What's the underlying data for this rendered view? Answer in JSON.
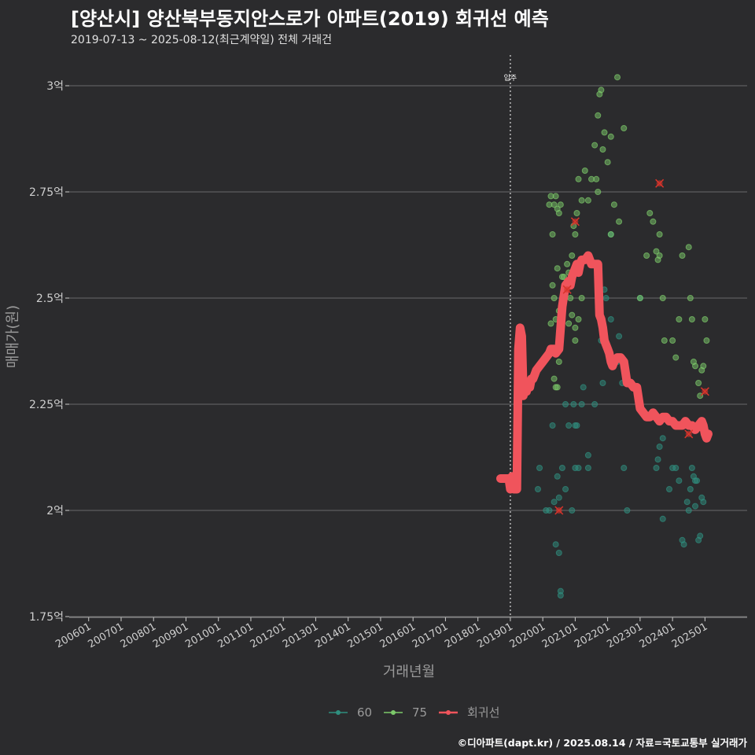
{
  "header": {
    "title": "[양산시] 양산북부동지안스로가 아파트(2019) 회귀선 예측",
    "subtitle": "2019-07-13 ~ 2025-08-12(최근계약일) 전체 거래건"
  },
  "caption": "©디아파트(dapt.kr) / 2025.08.14 / 자료=국토교통부 실거래가",
  "colors": {
    "background": "#2b2b2d",
    "grid": "#6a6a6a",
    "s60": "#2f8f7f",
    "s75": "#7cc96a",
    "regression": "#f0545c",
    "marker": "#d9342b"
  },
  "chart_data": {
    "type": "scatter",
    "title": "[양산시] 양산북부동지안스로가 아파트(2019) 회귀선 예측",
    "xlabel": "거래년월",
    "ylabel": "매매가(원)",
    "ylim": [
      1.75,
      3.0
    ],
    "y_ticks": [
      1.75,
      2.0,
      2.25,
      2.5,
      2.75,
      3.0
    ],
    "y_tick_labels": [
      "1.75억",
      "2억",
      "2.25억",
      "2.5억",
      "2.75억",
      "3억"
    ],
    "x_tick_labels": [
      "200601",
      "200701",
      "200801",
      "200901",
      "201001",
      "201101",
      "201201",
      "201301",
      "201401",
      "201501",
      "201601",
      "201701",
      "201801",
      "201901",
      "202001",
      "202101",
      "202201",
      "202301",
      "202401",
      "202501"
    ],
    "x_tick_years": [
      2006,
      2007,
      2008,
      2009,
      2010,
      2011,
      2012,
      2013,
      2014,
      2015,
      2016,
      2017,
      2018,
      2019,
      2020,
      2021,
      2022,
      2023,
      2024,
      2025
    ],
    "xlim": [
      2005.4,
      2026.3
    ],
    "annotation": {
      "label": "입주",
      "x": 2019.0
    },
    "legend": {
      "position": "bottom",
      "entries": [
        "60",
        "75",
        "회귀선"
      ]
    },
    "series": [
      {
        "name": "60",
        "points": [
          [
            2019.9,
            2.1
          ],
          [
            2019.85,
            2.05
          ],
          [
            2020.1,
            2.0
          ],
          [
            2020.2,
            2.0
          ],
          [
            2020.3,
            2.2
          ],
          [
            2020.35,
            2.02
          ],
          [
            2020.4,
            1.92
          ],
          [
            2020.45,
            2.08
          ],
          [
            2020.5,
            2.03
          ],
          [
            2020.55,
            1.8
          ],
          [
            2020.55,
            1.81
          ],
          [
            2020.5,
            1.9
          ],
          [
            2020.6,
            2.1
          ],
          [
            2020.7,
            2.05
          ],
          [
            2020.8,
            2.2
          ],
          [
            2020.9,
            2.0
          ],
          [
            2020.95,
            2.25
          ],
          [
            2021.0,
            2.1
          ],
          [
            2021.05,
            2.2
          ],
          [
            2021.1,
            2.1
          ],
          [
            2021.2,
            2.25
          ],
          [
            2021.25,
            2.29
          ],
          [
            2021.4,
            2.13
          ],
          [
            2021.4,
            2.1
          ],
          [
            2021.6,
            2.25
          ],
          [
            2021.8,
            2.4
          ],
          [
            2021.85,
            2.3
          ],
          [
            2021.95,
            2.5
          ],
          [
            2022.1,
            2.45
          ],
          [
            2022.3,
            2.35
          ],
          [
            2022.35,
            2.41
          ],
          [
            2022.45,
            2.3
          ],
          [
            2022.5,
            2.1
          ],
          [
            2022.6,
            2.0
          ],
          [
            2023.0,
            2.5
          ],
          [
            2023.5,
            2.1
          ],
          [
            2023.55,
            2.12
          ],
          [
            2023.6,
            2.15
          ],
          [
            2023.7,
            2.17
          ],
          [
            2023.8,
            2.22
          ],
          [
            2023.9,
            2.05
          ],
          [
            2024.0,
            2.1
          ],
          [
            2024.1,
            2.1
          ],
          [
            2024.2,
            2.07
          ],
          [
            2024.3,
            1.93
          ],
          [
            2024.35,
            1.92
          ],
          [
            2024.45,
            2.02
          ],
          [
            2024.5,
            2.0
          ],
          [
            2024.6,
            2.1
          ],
          [
            2024.65,
            2.08
          ],
          [
            2024.7,
            2.07
          ],
          [
            2024.75,
            2.07
          ],
          [
            2024.8,
            1.93
          ],
          [
            2024.85,
            1.94
          ],
          [
            2024.9,
            2.03
          ],
          [
            2024.95,
            2.02
          ],
          [
            2024.55,
            2.05
          ],
          [
            2024.7,
            2.01
          ],
          [
            2023.7,
            1.98
          ],
          [
            2022.1,
            2.65
          ],
          [
            2021.9,
            2.52
          ],
          [
            2020.7,
            2.25
          ],
          [
            2021.0,
            2.2
          ]
        ]
      },
      {
        "name": "75",
        "points": [
          [
            2020.2,
            2.72
          ],
          [
            2020.25,
            2.74
          ],
          [
            2020.3,
            2.65
          ],
          [
            2020.35,
            2.72
          ],
          [
            2020.4,
            2.74
          ],
          [
            2020.45,
            2.71
          ],
          [
            2020.5,
            2.7
          ],
          [
            2020.55,
            2.72
          ],
          [
            2020.6,
            2.55
          ],
          [
            2020.65,
            2.5
          ],
          [
            2020.7,
            2.53
          ],
          [
            2020.75,
            2.58
          ],
          [
            2020.8,
            2.56
          ],
          [
            2020.85,
            2.5
          ],
          [
            2020.9,
            2.6
          ],
          [
            2020.95,
            2.67
          ],
          [
            2021.0,
            2.65
          ],
          [
            2021.05,
            2.7
          ],
          [
            2021.1,
            2.78
          ],
          [
            2021.2,
            2.73
          ],
          [
            2021.3,
            2.8
          ],
          [
            2021.4,
            2.73
          ],
          [
            2021.5,
            2.78
          ],
          [
            2021.6,
            2.86
          ],
          [
            2021.7,
            2.93
          ],
          [
            2021.75,
            2.98
          ],
          [
            2021.8,
            2.99
          ],
          [
            2021.85,
            2.85
          ],
          [
            2021.9,
            2.89
          ],
          [
            2022.0,
            2.82
          ],
          [
            2022.1,
            2.88
          ],
          [
            2022.2,
            2.72
          ],
          [
            2022.3,
            3.02
          ],
          [
            2022.35,
            2.68
          ],
          [
            2022.5,
            2.9
          ],
          [
            2022.1,
            2.65
          ],
          [
            2021.7,
            2.75
          ],
          [
            2021.65,
            2.78
          ],
          [
            2020.4,
            2.45
          ],
          [
            2020.5,
            2.47
          ],
          [
            2020.55,
            2.46
          ],
          [
            2020.3,
            2.53
          ],
          [
            2020.35,
            2.5
          ],
          [
            2020.45,
            2.57
          ],
          [
            2020.4,
            2.29
          ],
          [
            2020.35,
            2.31
          ],
          [
            2020.45,
            2.29
          ],
          [
            2021.0,
            2.4
          ],
          [
            2021.1,
            2.45
          ],
          [
            2021.2,
            2.5
          ],
          [
            2023.0,
            2.5
          ],
          [
            2023.2,
            2.6
          ],
          [
            2023.3,
            2.7
          ],
          [
            2023.4,
            2.68
          ],
          [
            2023.5,
            2.61
          ],
          [
            2023.6,
            2.65
          ],
          [
            2023.7,
            2.5
          ],
          [
            2023.75,
            2.4
          ],
          [
            2024.0,
            2.4
          ],
          [
            2024.1,
            2.36
          ],
          [
            2024.2,
            2.45
          ],
          [
            2024.3,
            2.6
          ],
          [
            2024.5,
            2.62
          ],
          [
            2024.55,
            2.5
          ],
          [
            2024.6,
            2.45
          ],
          [
            2024.65,
            2.35
          ],
          [
            2024.7,
            2.34
          ],
          [
            2024.8,
            2.3
          ],
          [
            2024.85,
            2.27
          ],
          [
            2024.9,
            2.33
          ],
          [
            2024.95,
            2.34
          ],
          [
            2025.0,
            2.45
          ],
          [
            2025.05,
            2.4
          ],
          [
            2023.55,
            2.59
          ],
          [
            2023.6,
            2.6
          ],
          [
            2020.65,
            2.55
          ],
          [
            2020.8,
            2.44
          ],
          [
            2020.9,
            2.46
          ],
          [
            2021.0,
            2.43
          ],
          [
            2020.5,
            2.35
          ],
          [
            2020.25,
            2.44
          ]
        ]
      }
    ],
    "regression": {
      "name": "회귀선",
      "x": [
        2018.7,
        2018.85,
        2018.95,
        2019.0,
        2019.05,
        2019.1,
        2019.15,
        2019.2,
        2019.25,
        2019.3,
        2019.35,
        2019.4,
        2019.45,
        2019.5,
        2019.55,
        2019.6,
        2019.65,
        2019.7,
        2019.75,
        2019.8,
        2019.9,
        2020.0,
        2020.1,
        2020.2,
        2020.25,
        2020.3,
        2020.35,
        2020.4,
        2020.5,
        2020.6,
        2020.7,
        2020.8,
        2020.85,
        2020.9,
        2020.95,
        2021.0,
        2021.05,
        2021.1,
        2021.15,
        2021.2,
        2021.3,
        2021.4,
        2021.5,
        2021.6,
        2021.7,
        2021.75,
        2021.8,
        2021.85,
        2021.9,
        2022.0,
        2022.05,
        2022.1,
        2022.15,
        2022.2,
        2022.3,
        2022.4,
        2022.5,
        2022.6,
        2022.7,
        2022.8,
        2022.9,
        2023.0,
        2023.1,
        2023.2,
        2023.3,
        2023.4,
        2023.5,
        2023.6,
        2023.7,
        2023.8,
        2023.9,
        2024.0,
        2024.1,
        2024.2,
        2024.3,
        2024.4,
        2024.5,
        2024.6,
        2024.7,
        2024.8,
        2024.9,
        2024.95,
        2025.0,
        2025.05,
        2025.1
      ],
      "y": [
        2.075,
        2.075,
        2.075,
        2.05,
        2.08,
        2.05,
        2.05,
        2.05,
        2.38,
        2.43,
        2.41,
        2.27,
        2.29,
        2.28,
        2.3,
        2.29,
        2.31,
        2.31,
        2.32,
        2.33,
        2.34,
        2.35,
        2.36,
        2.37,
        2.38,
        2.38,
        2.38,
        2.37,
        2.38,
        2.48,
        2.53,
        2.54,
        2.53,
        2.55,
        2.56,
        2.57,
        2.58,
        2.56,
        2.58,
        2.59,
        2.59,
        2.6,
        2.58,
        2.58,
        2.58,
        2.46,
        2.45,
        2.43,
        2.4,
        2.38,
        2.37,
        2.35,
        2.34,
        2.35,
        2.36,
        2.36,
        2.35,
        2.3,
        2.3,
        2.29,
        2.29,
        2.24,
        2.23,
        2.22,
        2.22,
        2.23,
        2.22,
        2.21,
        2.22,
        2.22,
        2.21,
        2.21,
        2.2,
        2.2,
        2.2,
        2.21,
        2.2,
        2.2,
        2.19,
        2.2,
        2.21,
        2.2,
        2.18,
        2.17,
        2.18
      ]
    },
    "markers": [
      [
        2020.5,
        2.0
      ],
      [
        2021.0,
        2.68
      ],
      [
        2020.75,
        2.52
      ],
      [
        2023.6,
        2.77
      ],
      [
        2024.5,
        2.18
      ],
      [
        2025.0,
        2.28
      ]
    ]
  }
}
